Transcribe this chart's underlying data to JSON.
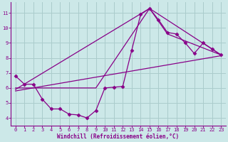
{
  "xlabel": "Windchill (Refroidissement éolien,°C)",
  "bg_color": "#cce8e8",
  "grid_color": "#aacccc",
  "line_color": "#880088",
  "marker": "D",
  "markersize": 2.5,
  "linewidth": 0.9,
  "xlim": [
    -0.5,
    23.5
  ],
  "ylim": [
    3.5,
    11.7
  ],
  "xticks": [
    0,
    1,
    2,
    3,
    4,
    5,
    6,
    7,
    8,
    9,
    10,
    11,
    12,
    13,
    14,
    15,
    16,
    17,
    18,
    19,
    20,
    21,
    22,
    23
  ],
  "yticks": [
    4,
    5,
    6,
    7,
    8,
    9,
    10,
    11
  ],
  "line1_x": [
    0,
    1,
    2,
    3,
    4,
    5,
    6,
    7,
    8,
    9,
    10,
    11,
    12,
    13,
    14,
    15,
    16,
    17,
    18,
    19,
    20,
    21,
    22,
    23
  ],
  "line1_y": [
    6.8,
    6.25,
    6.25,
    5.25,
    4.6,
    4.6,
    4.25,
    4.2,
    4.0,
    4.5,
    6.0,
    6.05,
    6.1,
    8.5,
    10.9,
    11.3,
    10.55,
    9.7,
    9.6,
    9.0,
    8.3,
    9.0,
    8.6,
    8.2
  ],
  "line2_x": [
    0,
    9,
    15,
    23
  ],
  "line2_y": [
    6.0,
    6.0,
    11.3,
    8.2
  ],
  "line3_x": [
    0,
    23
  ],
  "line3_y": [
    5.8,
    8.15
  ],
  "line4_x": [
    0,
    15,
    17,
    23
  ],
  "line4_y": [
    5.9,
    11.3,
    9.6,
    8.2
  ]
}
